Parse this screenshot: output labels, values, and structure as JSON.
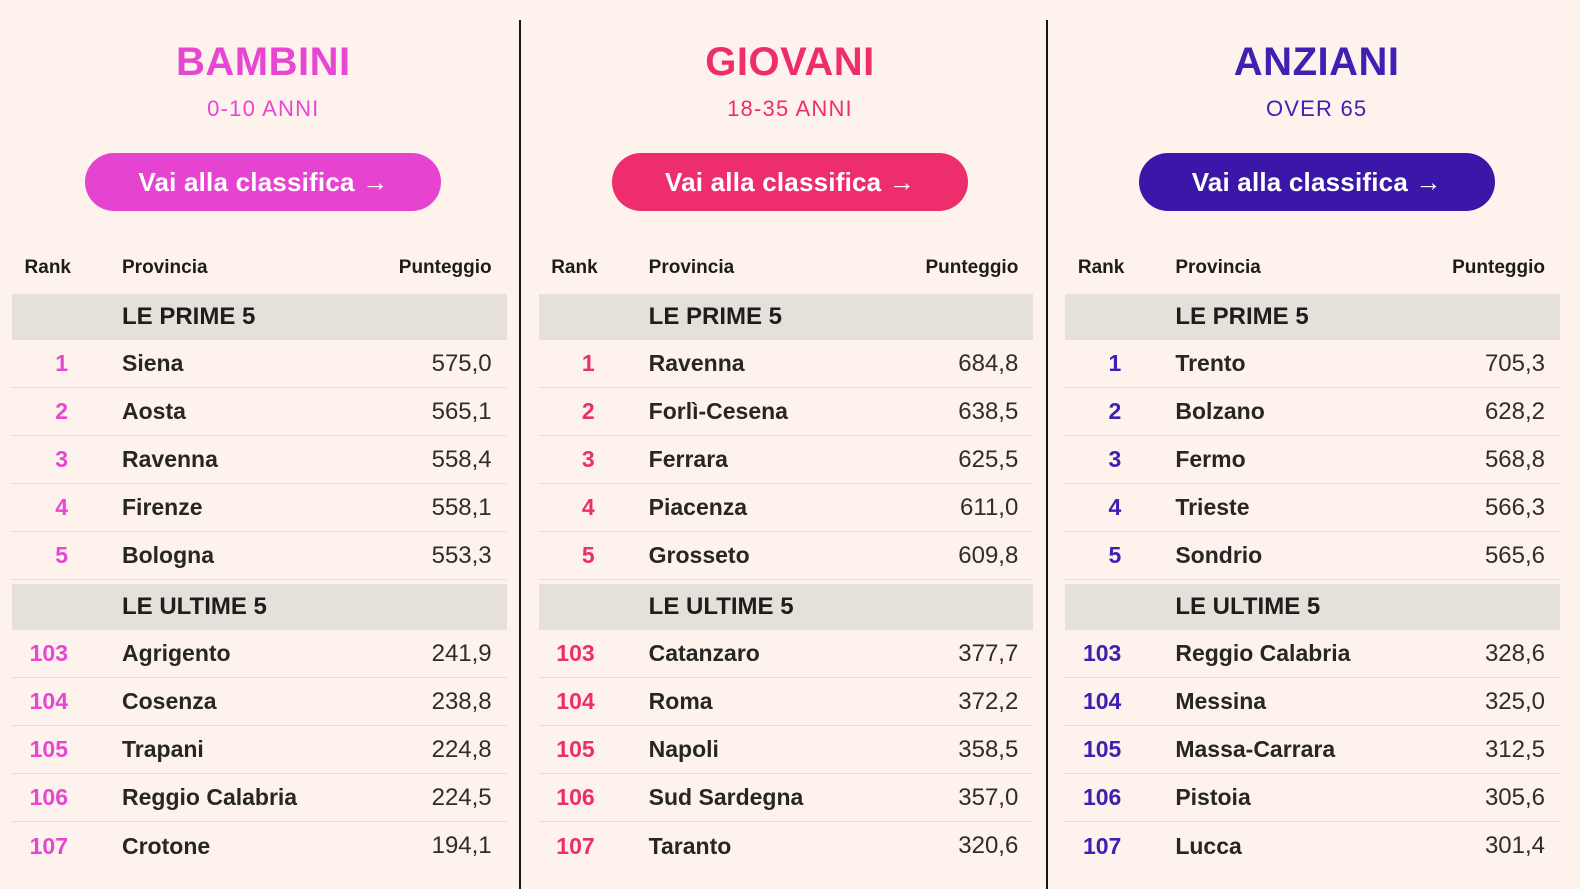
{
  "page": {
    "background": "#fdf3ec",
    "divider_color": "#161616",
    "band_background": "#e6e0da"
  },
  "shared": {
    "button_label": "Vai alla classifica →",
    "headers": {
      "rank": "Rank",
      "provincia": "Provincia",
      "punteggio": "Punteggio"
    },
    "prime_label": "LE PRIME 5",
    "ultime_label": "LE ULTIME 5"
  },
  "columns": [
    {
      "title": "BAMBINI",
      "subtitle": "0-10 ANNI",
      "accent": "#e746d2",
      "button_bg": "#e743d1",
      "prime": [
        {
          "rank": "1",
          "provincia": "Siena",
          "punteggio": "575,0"
        },
        {
          "rank": "2",
          "provincia": "Aosta",
          "punteggio": "565,1"
        },
        {
          "rank": "3",
          "provincia": "Ravenna",
          "punteggio": "558,4"
        },
        {
          "rank": "4",
          "provincia": "Firenze",
          "punteggio": "558,1"
        },
        {
          "rank": "5",
          "provincia": "Bologna",
          "punteggio": "553,3"
        }
      ],
      "ultime": [
        {
          "rank": "103",
          "provincia": "Agrigento",
          "punteggio": "241,9"
        },
        {
          "rank": "104",
          "provincia": "Cosenza",
          "punteggio": "238,8"
        },
        {
          "rank": "105",
          "provincia": "Trapani",
          "punteggio": "224,8"
        },
        {
          "rank": "106",
          "provincia": "Reggio Calabria",
          "punteggio": "224,5"
        },
        {
          "rank": "107",
          "provincia": "Crotone",
          "punteggio": "194,1"
        }
      ]
    },
    {
      "title": "GIOVANI",
      "subtitle": "18-35 ANNI",
      "accent": "#ee2d6d",
      "button_bg": "#ee2d6d",
      "prime": [
        {
          "rank": "1",
          "provincia": "Ravenna",
          "punteggio": "684,8"
        },
        {
          "rank": "2",
          "provincia": "Forlì-Cesena",
          "punteggio": "638,5"
        },
        {
          "rank": "3",
          "provincia": "Ferrara",
          "punteggio": "625,5"
        },
        {
          "rank": "4",
          "provincia": "Piacenza",
          "punteggio": "611,0"
        },
        {
          "rank": "5",
          "provincia": "Grosseto",
          "punteggio": "609,8"
        }
      ],
      "ultime": [
        {
          "rank": "103",
          "provincia": "Catanzaro",
          "punteggio": "377,7"
        },
        {
          "rank": "104",
          "provincia": "Roma",
          "punteggio": "372,2"
        },
        {
          "rank": "105",
          "provincia": "Napoli",
          "punteggio": "358,5"
        },
        {
          "rank": "106",
          "provincia": "Sud Sardegna",
          "punteggio": "357,0"
        },
        {
          "rank": "107",
          "provincia": "Taranto",
          "punteggio": "320,6"
        }
      ]
    },
    {
      "title": "ANZIANI",
      "subtitle": "OVER 65",
      "accent": "#3e20b3",
      "button_bg": "#3a17a8",
      "prime": [
        {
          "rank": "1",
          "provincia": "Trento",
          "punteggio": "705,3"
        },
        {
          "rank": "2",
          "provincia": "Bolzano",
          "punteggio": "628,2"
        },
        {
          "rank": "3",
          "provincia": "Fermo",
          "punteggio": "568,8"
        },
        {
          "rank": "4",
          "provincia": "Trieste",
          "punteggio": "566,3"
        },
        {
          "rank": "5",
          "provincia": "Sondrio",
          "punteggio": "565,6"
        }
      ],
      "ultime": [
        {
          "rank": "103",
          "provincia": "Reggio Calabria",
          "punteggio": "328,6"
        },
        {
          "rank": "104",
          "provincia": "Messina",
          "punteggio": "325,0"
        },
        {
          "rank": "105",
          "provincia": "Massa-Carrara",
          "punteggio": "312,5"
        },
        {
          "rank": "106",
          "provincia": "Pistoia",
          "punteggio": "305,6"
        },
        {
          "rank": "107",
          "provincia": "Lucca",
          "punteggio": "301,4"
        }
      ]
    }
  ]
}
